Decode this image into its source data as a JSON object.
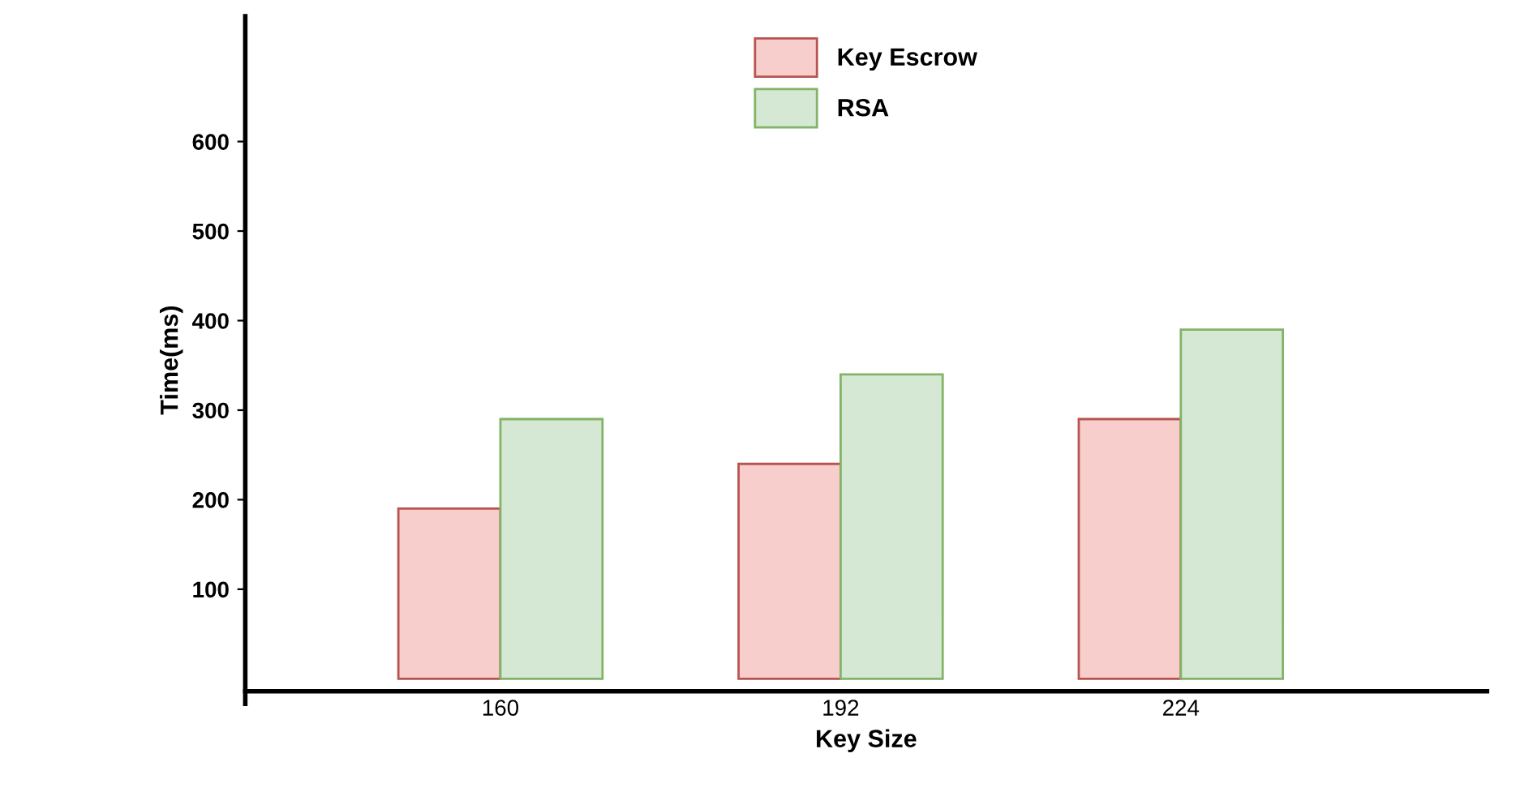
{
  "chart_data": {
    "type": "bar",
    "xlabel": "Key Size",
    "ylabel": "Time(ms)",
    "categories": [
      "160",
      "192",
      "224"
    ],
    "series": [
      {
        "name": "Key Escrow",
        "color": "#f8cecc",
        "values": [
          190,
          240,
          290
        ]
      },
      {
        "name": "RSA",
        "color": "#d5e8d4",
        "values": [
          290,
          340,
          390
        ]
      }
    ],
    "ylim": [
      -28,
      740
    ],
    "yticks": [
      100,
      200,
      300,
      400,
      500,
      600
    ],
    "grid": false,
    "legend": "top"
  }
}
